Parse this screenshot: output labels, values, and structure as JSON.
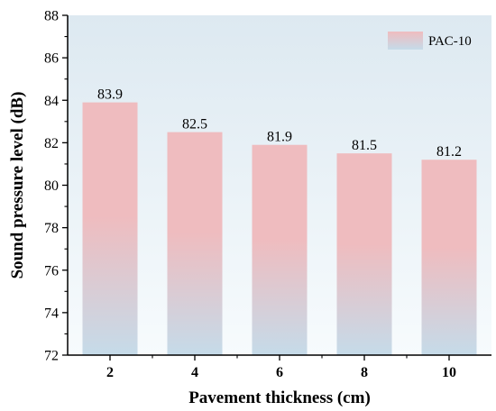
{
  "chart_data": {
    "type": "bar",
    "categories": [
      "2",
      "4",
      "6",
      "8",
      "10"
    ],
    "series": [
      {
        "name": "PAC-10",
        "values": [
          83.9,
          82.5,
          81.9,
          81.5,
          81.2
        ]
      }
    ],
    "data_labels": [
      "83.9",
      "82.5",
      "81.9",
      "81.5",
      "81.2"
    ],
    "xlabel": "Pavement thickness (cm)",
    "ylabel": "Sound pressure level (dB)",
    "ylim": [
      72,
      88
    ],
    "yticks": [
      72,
      74,
      76,
      78,
      80,
      82,
      84,
      86,
      88
    ],
    "grid": false,
    "legend_position": "top-right",
    "colors": {
      "bar_top": "#efbcbf",
      "bar_bottom": "#c5dbe9",
      "plot_bg_top": "#dde9f1",
      "plot_bg_bottom": "#f7fbfd",
      "axis": "#000000"
    }
  }
}
